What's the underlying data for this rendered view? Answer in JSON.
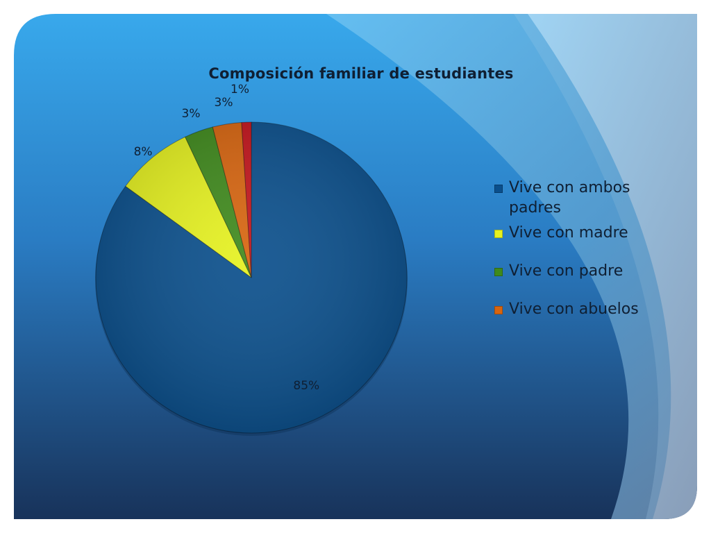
{
  "chart_data": {
    "type": "pie",
    "title": "Composición familiar de estudiantes",
    "slices": [
      {
        "name": "Vive con ambos padres",
        "value": 85,
        "label": "85%",
        "color": "#0a4f8c"
      },
      {
        "name": "Vive con madre",
        "value": 8,
        "label": "8%",
        "color": "#e6f21f"
      },
      {
        "name": "Vive con padre",
        "value": 3,
        "label": "3%",
        "color": "#3f8a1c"
      },
      {
        "name": "Vive con abuelos",
        "value": 3,
        "label": "3%",
        "color": "#d8650f"
      },
      {
        "name": "",
        "value": 1,
        "label": "1%",
        "color": "#c4141c"
      }
    ],
    "legend": {
      "position": "right",
      "entries": [
        "Vive con ambos padres",
        "Vive con madre",
        "Vive con padre",
        "Vive con abuelos"
      ]
    }
  },
  "theme": {
    "background_top": "#38a8ec",
    "background_bottom": "#163056",
    "arc_light": "#7ccaf3",
    "arc_pale": "#a9d9f5"
  }
}
